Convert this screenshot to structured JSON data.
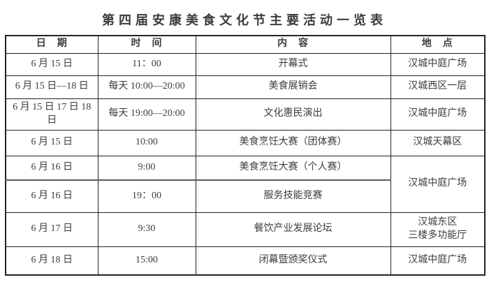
{
  "page": {
    "title": "第四届安康美食文化节主要活动一览表"
  },
  "colors": {
    "text": "#3c3c3c",
    "border": "#222222",
    "divider_thick": "#595959",
    "background": "#ffffff"
  },
  "table": {
    "headers": [
      {
        "id": "date",
        "label": "日　期"
      },
      {
        "id": "time",
        "label": "时　间"
      },
      {
        "id": "content",
        "label": "内　容"
      },
      {
        "id": "location",
        "label": "地　点"
      }
    ],
    "rows": [
      {
        "date": "6 月 15 日",
        "time": "11：00",
        "content": "开幕式",
        "location": "汉城中庭广场"
      },
      {
        "date": "6 月 15 日—18 日",
        "time": "每天 10:00—20:00",
        "content": "美食展销会",
        "location": "汉城西区一层"
      },
      {
        "date": "6 月 15 日 17 日 18 日",
        "time": "每天 19:00—20:00",
        "content": "文化惠民演出",
        "location": "汉城中庭广场"
      },
      {
        "date": "6 月 15 日",
        "time": "10:00",
        "content": "美食烹饪大赛（团体赛）",
        "location": "汉城天幕区"
      },
      {
        "date": "6 月 16 日",
        "time": "9:00",
        "content": "美食烹饪大赛（个人赛）",
        "location": "汉城中庭广场",
        "location_rowspan": 2
      },
      {
        "date": "6 月 16 日",
        "time": "19：00",
        "content": "服务技能竞赛",
        "location": null
      },
      {
        "date": "6 月 17 日",
        "time": "9:30",
        "content": "餐饮产业发展论坛",
        "location": "汉城东区\n三楼多功能厅"
      },
      {
        "date": "6 月 18 日",
        "time": "15:00",
        "content": "闭幕暨颁奖仪式",
        "location": "汉城中庭广场"
      }
    ]
  }
}
